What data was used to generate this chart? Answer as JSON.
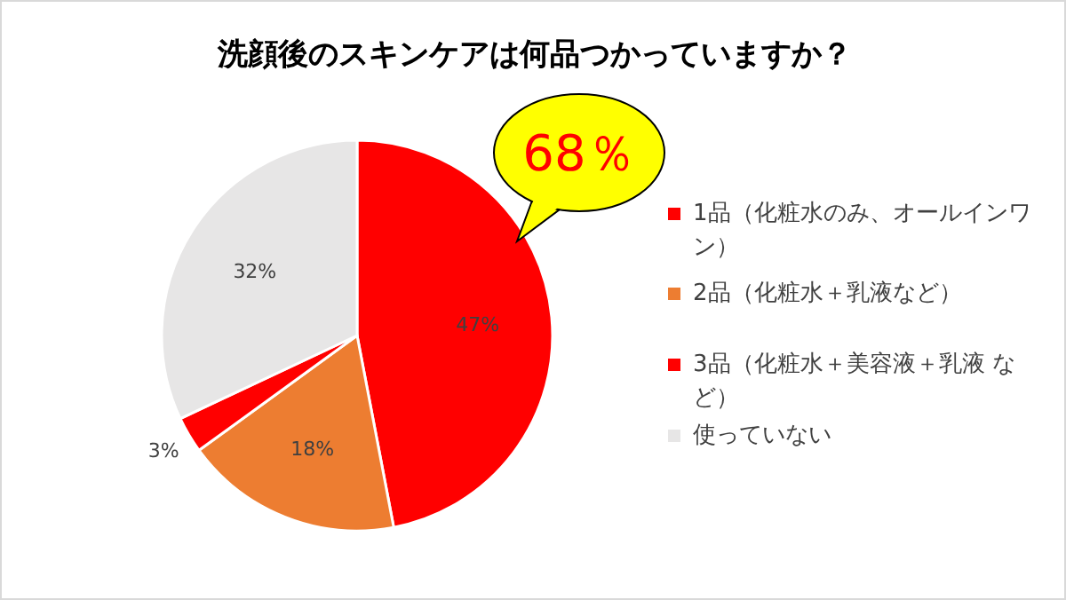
{
  "chart_data": {
    "type": "pie",
    "title": "洗顔後のスキンケアは何品つかっていますか？",
    "categories": [
      "1品（化粧水のみ、オールインワン）",
      "2品（化粧水＋乳液など）",
      "3品（化粧水＋美容液＋乳液 など）",
      "使っていない"
    ],
    "values": [
      47,
      18,
      3,
      32
    ],
    "value_labels": [
      "47%",
      "18%",
      "3%",
      "32%"
    ],
    "colors": [
      "#ff0000",
      "#ed7d31",
      "#ff0000",
      "#e7e6e6"
    ],
    "annotations": [
      "68％"
    ],
    "legend": "right"
  }
}
